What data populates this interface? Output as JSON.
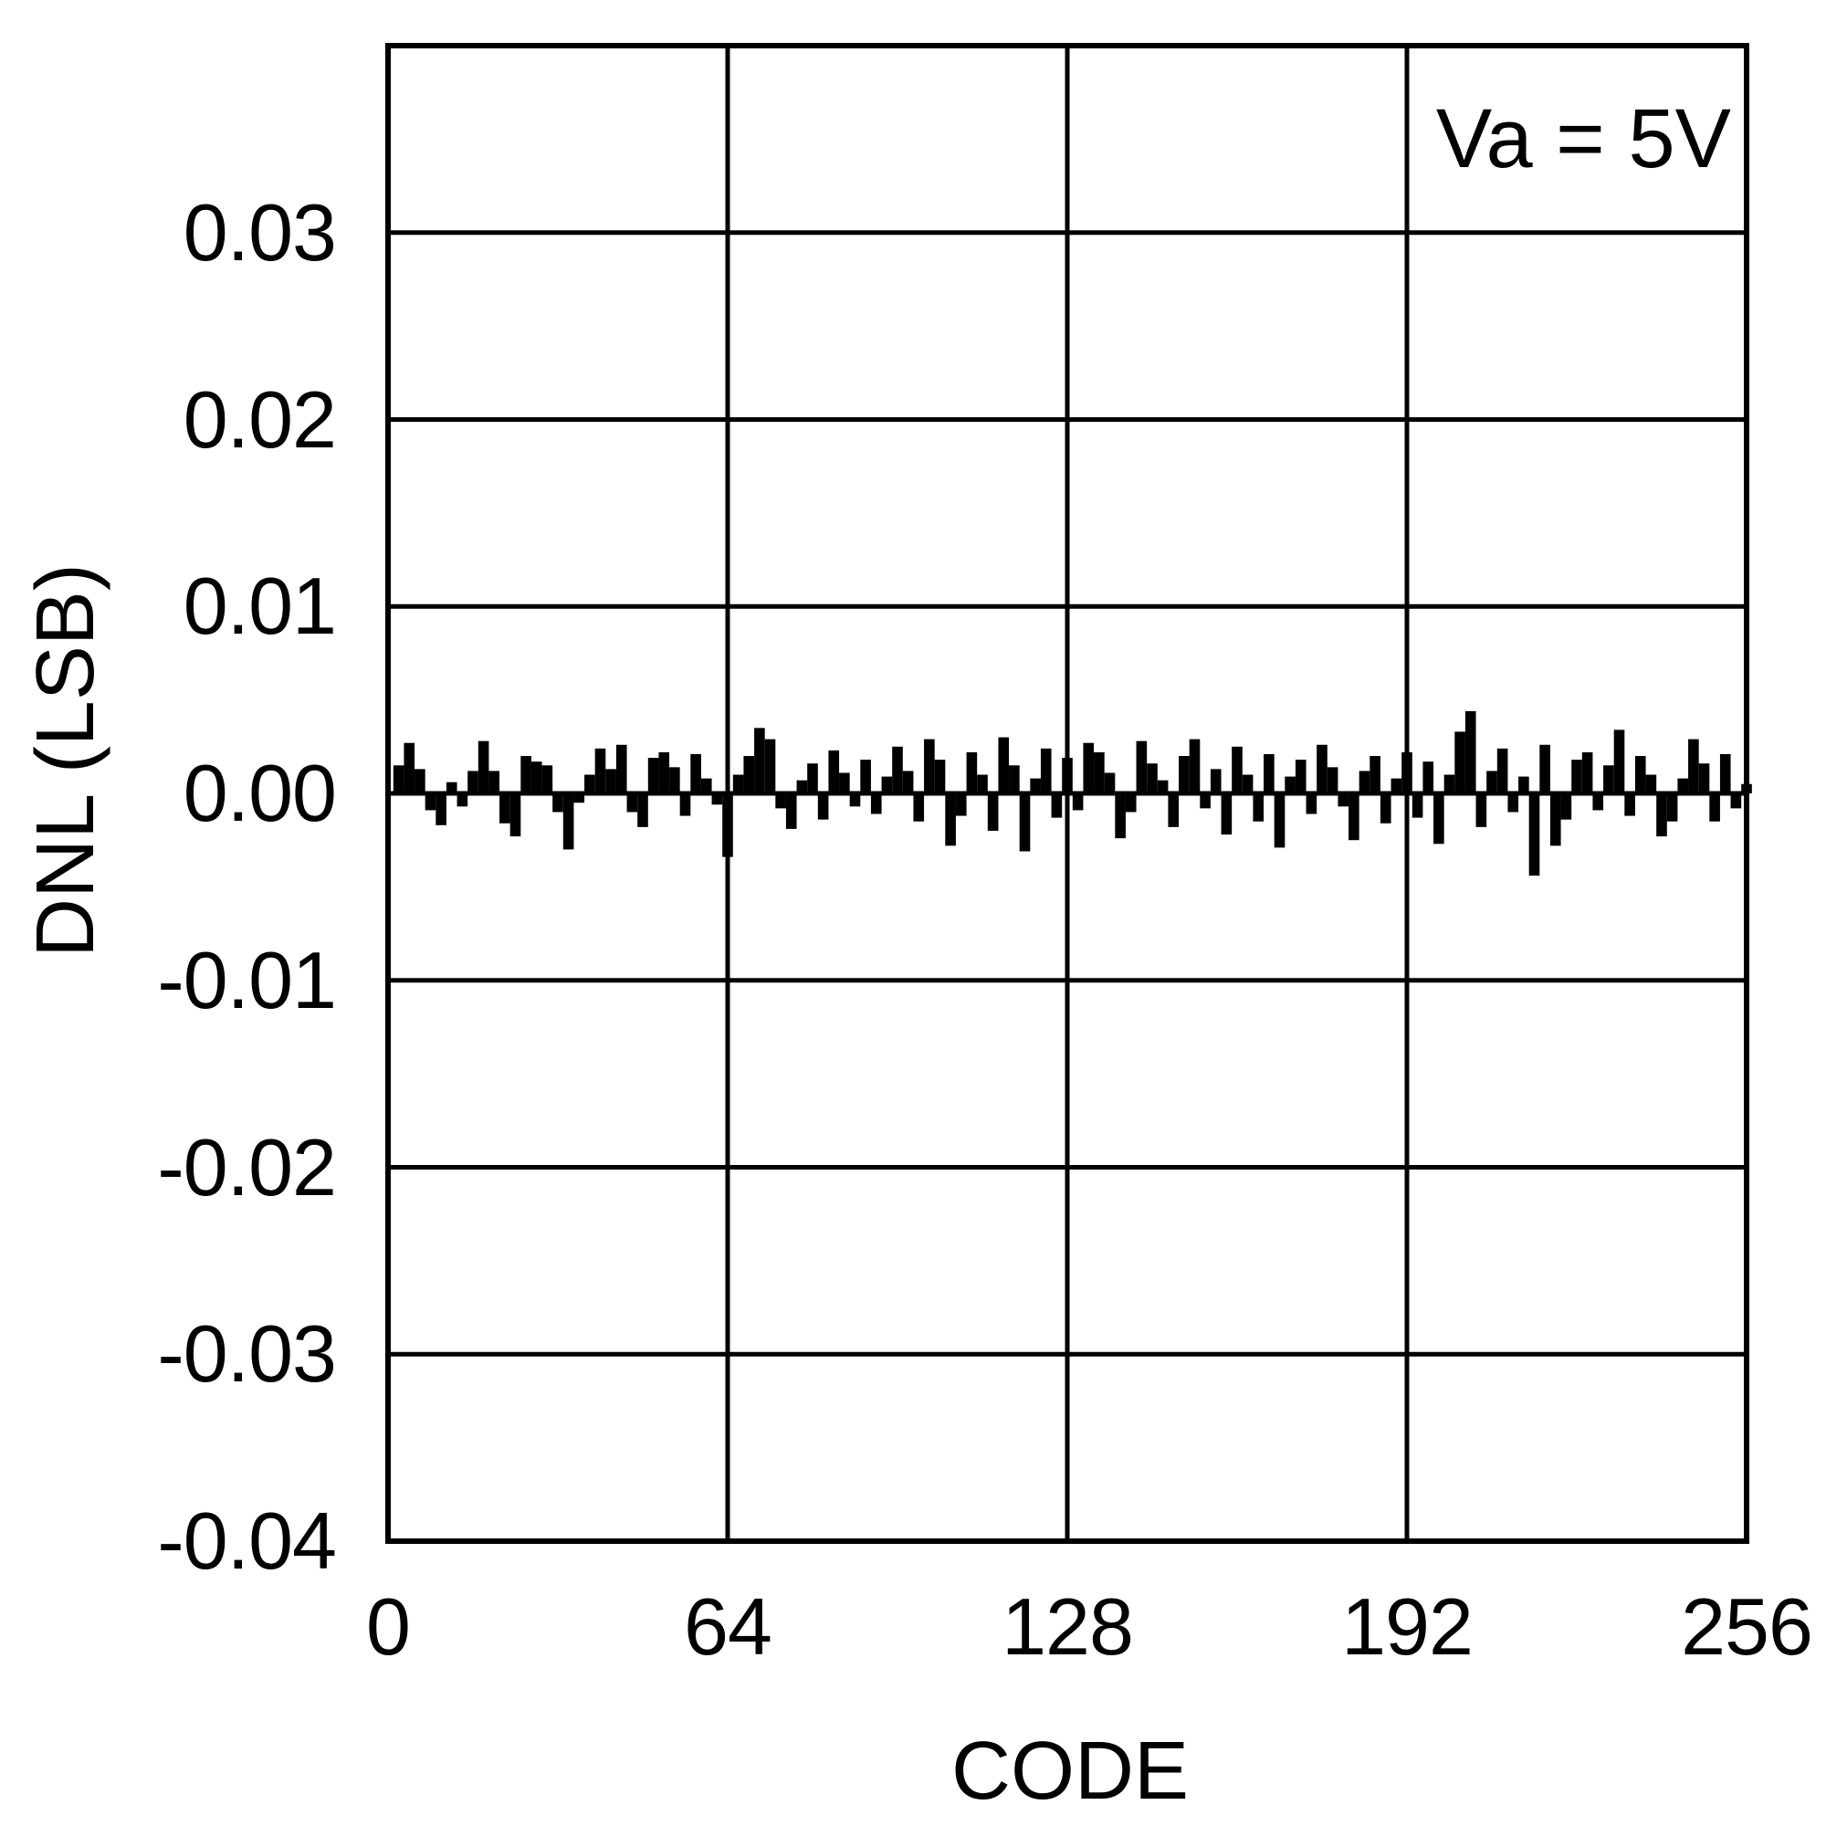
{
  "figure": {
    "background_color": "#ffffff",
    "foreground_color": "#000000"
  },
  "chart_data": {
    "type": "bar",
    "title": "",
    "xlabel": "CODE",
    "ylabel": "DNL (LSB)",
    "annotation": "Va = 5V",
    "xlim": [
      0,
      256
    ],
    "ylim": [
      -0.04,
      0.04
    ],
    "grid": "on",
    "x_ticks": [
      {
        "value": 0,
        "label": "0"
      },
      {
        "value": 64,
        "label": "64"
      },
      {
        "value": 128,
        "label": "128"
      },
      {
        "value": 192,
        "label": "192"
      },
      {
        "value": 256,
        "label": "256"
      }
    ],
    "y_ticks": [
      {
        "value": 0.03,
        "label": "0.03"
      },
      {
        "value": 0.02,
        "label": "0.02"
      },
      {
        "value": 0.01,
        "label": "0.01"
      },
      {
        "value": 0.0,
        "label": "0.00"
      },
      {
        "value": -0.01,
        "label": "-0.01"
      },
      {
        "value": -0.02,
        "label": "-0.02"
      },
      {
        "value": -0.03,
        "label": "-0.03"
      },
      {
        "value": -0.04,
        "label": "-0.04"
      }
    ],
    "y_gridline_values": [
      0.03,
      0.02,
      0.01,
      0.0,
      -0.01,
      -0.02,
      -0.03
    ],
    "x_gridline_values": [
      64,
      128,
      192
    ],
    "bar_color": "#000000",
    "x_start": 2,
    "x_step": 2,
    "value_unit_lsb": 0.001,
    "values": [
      1.5,
      2.7,
      1.3,
      -0.9,
      -1.7,
      0.6,
      -0.7,
      1.2,
      2.8,
      1.2,
      -1.6,
      -2.3,
      2.0,
      1.7,
      1.5,
      -1.0,
      -3.0,
      -0.5,
      1.0,
      2.4,
      1.3,
      2.6,
      -1.0,
      -1.8,
      1.9,
      2.2,
      1.4,
      -1.2,
      2.1,
      0.8,
      -0.6,
      -3.4,
      1.0,
      2.0,
      3.5,
      2.9,
      -0.8,
      -1.9,
      0.7,
      1.6,
      -1.4,
      2.3,
      1.1,
      -0.7,
      1.8,
      -1.1,
      0.9,
      2.5,
      1.2,
      -1.5,
      2.9,
      1.8,
      -2.8,
      -1.2,
      2.2,
      1.0,
      -2.0,
      3.0,
      1.5,
      -3.1,
      0.8,
      2.4,
      -1.3,
      1.9,
      -0.9,
      2.7,
      2.2,
      1.1,
      -2.4,
      -1.0,
      2.8,
      1.6,
      0.7,
      -1.8,
      2.0,
      2.9,
      -0.8,
      1.3,
      -2.2,
      2.5,
      1.0,
      -1.5,
      2.1,
      -2.9,
      0.9,
      1.8,
      -1.1,
      2.6,
      1.4,
      -0.7,
      -2.5,
      1.2,
      2.0,
      -1.6,
      0.8,
      2.2,
      -1.3,
      1.7,
      -2.7,
      1.0,
      3.3,
      4.4,
      -1.8,
      1.2,
      2.4,
      -1.0,
      0.9,
      -4.4,
      2.6,
      -2.8,
      -1.4,
      1.8,
      2.2,
      -0.9,
      1.5,
      3.4,
      -1.2,
      2.0,
      1.0,
      -2.3,
      -1.5,
      0.8,
      2.9,
      1.6,
      -1.5,
      2.1,
      -0.8,
      0.5
    ],
    "layout": {
      "plot_left": 425,
      "plot_top": 50,
      "plot_right": 1913,
      "plot_bottom": 1688,
      "frame_stroke": 6,
      "grid_stroke": 5,
      "ytick_right_edge": 368,
      "xtick_center_y": 1782,
      "xlabel_center": [
        1172,
        1940
      ],
      "ylabel_center": [
        72,
        833
      ],
      "annotation_anchor": [
        1896,
        152
      ]
    }
  }
}
